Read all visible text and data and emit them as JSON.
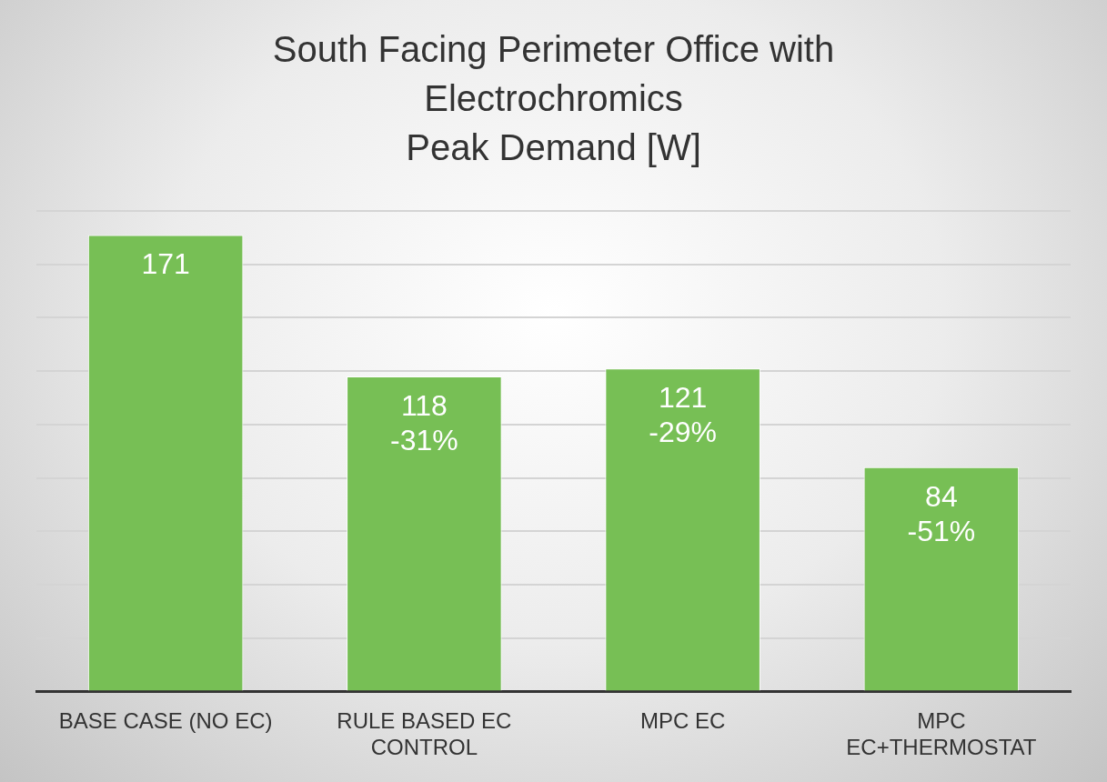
{
  "chart_data": {
    "type": "bar",
    "title": "South Facing Perimeter Office with\nElectrochromics\nPeak Demand [W]",
    "categories": [
      "BASE CASE (NO EC)",
      "RULE BASED EC\nCONTROL",
      "MPC EC",
      "MPC\nEC+THERMOSTAT"
    ],
    "values": [
      171,
      118,
      121,
      84
    ],
    "value_labels": [
      "171",
      "118\n-31%",
      "121\n-29%",
      "84\n-51%"
    ],
    "color": "#77bf55",
    "ylim": [
      0,
      180
    ],
    "yticks": [
      {
        "value": 0,
        "label": null
      },
      {
        "value": 20,
        "label": null
      },
      {
        "value": 40,
        "label": null
      },
      {
        "value": 60,
        "label": null
      },
      {
        "value": 80,
        "label": null
      },
      {
        "value": 100,
        "label": null
      },
      {
        "value": 120,
        "label": null
      },
      {
        "value": 140,
        "label": null
      },
      {
        "value": 160,
        "label": null
      },
      {
        "value": 180,
        "label": null
      }
    ],
    "tick_labels": "x",
    "grid": "y"
  }
}
